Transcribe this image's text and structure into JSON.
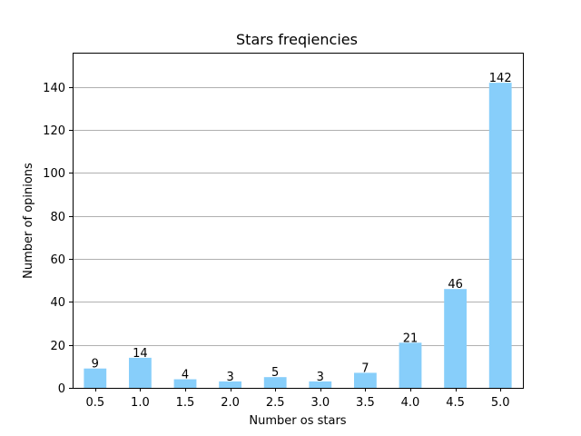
{
  "chart_data": {
    "type": "bar",
    "title": "Stars freqiencies",
    "xlabel": "Number os stars",
    "ylabel": "Number of opinions",
    "categories": [
      "0.5",
      "1.0",
      "1.5",
      "2.0",
      "2.5",
      "3.0",
      "3.5",
      "4.0",
      "4.5",
      "5.0"
    ],
    "values": [
      9,
      14,
      4,
      3,
      5,
      3,
      7,
      21,
      46,
      142
    ],
    "data_labels": [
      "9",
      "14",
      "4",
      "3",
      "5",
      "3",
      "7",
      "21",
      "46",
      "142"
    ],
    "ylim": [
      0,
      156
    ],
    "yticks": [
      0,
      20,
      40,
      60,
      80,
      100,
      120,
      140
    ],
    "ytick_labels": [
      "0",
      "20",
      "40",
      "60",
      "80",
      "100",
      "120",
      "140"
    ],
    "grid": "horizontal",
    "bar_color": "#87CEFA"
  }
}
